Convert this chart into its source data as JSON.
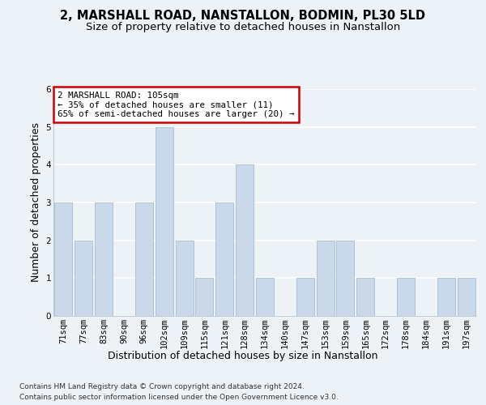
{
  "title": "2, MARSHALL ROAD, NANSTALLON, BODMIN, PL30 5LD",
  "subtitle": "Size of property relative to detached houses in Nanstallon",
  "xlabel_bottom": "Distribution of detached houses by size in Nanstallon",
  "ylabel": "Number of detached properties",
  "categories": [
    "71sqm",
    "77sqm",
    "83sqm",
    "90sqm",
    "96sqm",
    "102sqm",
    "109sqm",
    "115sqm",
    "121sqm",
    "128sqm",
    "134sqm",
    "140sqm",
    "147sqm",
    "153sqm",
    "159sqm",
    "165sqm",
    "172sqm",
    "178sqm",
    "184sqm",
    "191sqm",
    "197sqm"
  ],
  "values": [
    3,
    2,
    3,
    0,
    3,
    5,
    2,
    1,
    3,
    4,
    1,
    0,
    1,
    2,
    2,
    1,
    0,
    1,
    0,
    1,
    1
  ],
  "bar_color": "#c9d9ea",
  "bar_edge_color": "#9ab5cc",
  "ylim": [
    0,
    6
  ],
  "yticks": [
    0,
    1,
    2,
    3,
    4,
    5,
    6
  ],
  "annotation_text": "2 MARSHALL ROAD: 105sqm\n← 35% of detached houses are smaller (11)\n65% of semi-detached houses are larger (20) →",
  "annotation_box_color": "#ffffff",
  "annotation_box_edge_color": "#cc0000",
  "footnote1": "Contains HM Land Registry data © Crown copyright and database right 2024.",
  "footnote2": "Contains public sector information licensed under the Open Government Licence v3.0.",
  "background_color": "#edf2f7",
  "grid_color": "#ffffff",
  "title_fontsize": 10.5,
  "subtitle_fontsize": 9.5,
  "ylabel_fontsize": 9,
  "tick_fontsize": 7.5,
  "annotation_fontsize": 7.8,
  "footnote_fontsize": 6.5,
  "xlabel_bottom_fontsize": 9
}
